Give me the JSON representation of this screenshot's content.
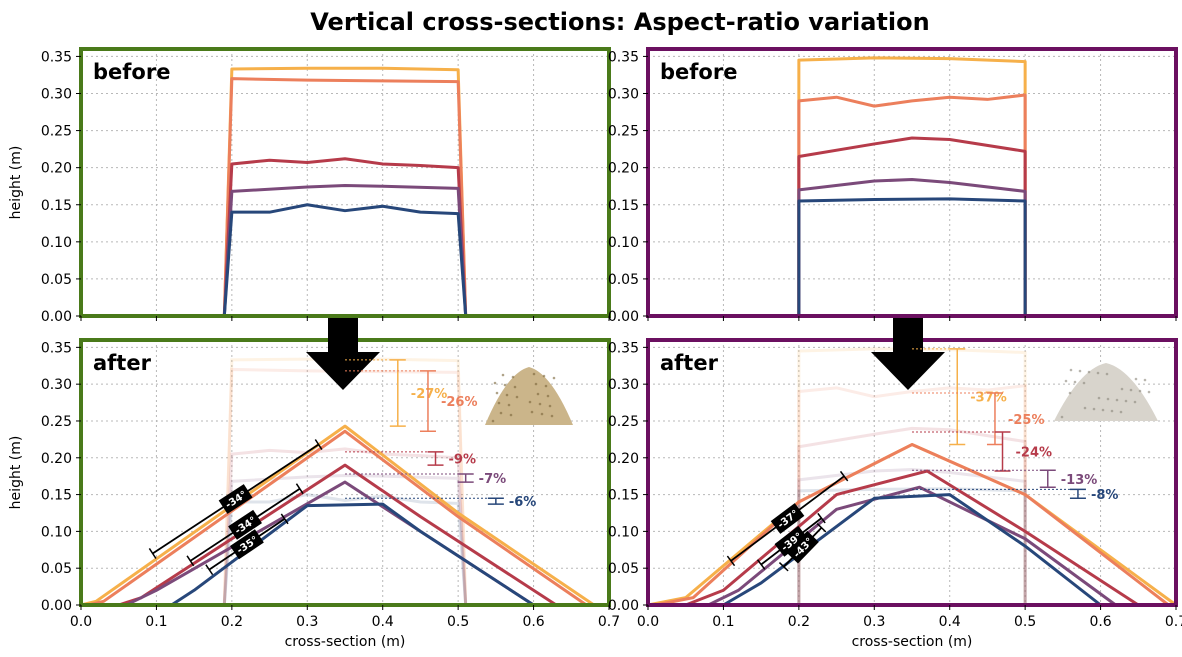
{
  "title": "Vertical cross-sections: Aspect-ratio variation",
  "axes": {
    "xlabel": "cross-section (m)",
    "ylabel": "height (m)",
    "xlim": [
      0.0,
      0.7
    ],
    "ylim": [
      0.0,
      0.36
    ],
    "xticks": [
      "0.0",
      "0.1",
      "0.2",
      "0.3",
      "0.4",
      "0.5",
      "0.6",
      "0.7"
    ],
    "yticks": [
      "0.00",
      "0.05",
      "0.10",
      "0.15",
      "0.20",
      "0.25",
      "0.30",
      "0.35"
    ],
    "grid": true
  },
  "colors": {
    "left_frame": "#4a7a1a",
    "right_frame": "#6b1060",
    "series": [
      "#f6b04a",
      "#ec7f5c",
      "#b63b4a",
      "#7b4a7a",
      "#27477a"
    ]
  },
  "icons": [
    "down-arrow-icon",
    "sand-pile-icon",
    "sand-pile-icon"
  ],
  "chart_data": [
    {
      "panel": "left-before",
      "type": "line",
      "label": "before",
      "series": [
        {
          "color": "#f6b04a",
          "x": [
            0.19,
            0.2,
            0.3,
            0.4,
            0.5,
            0.51
          ],
          "y": [
            0.0,
            0.333,
            0.334,
            0.334,
            0.332,
            0.0
          ]
        },
        {
          "color": "#ec7f5c",
          "x": [
            0.19,
            0.2,
            0.3,
            0.4,
            0.5,
            0.51
          ],
          "y": [
            0.0,
            0.32,
            0.318,
            0.317,
            0.316,
            0.0
          ]
        },
        {
          "color": "#b63b4a",
          "x": [
            0.19,
            0.2,
            0.25,
            0.3,
            0.35,
            0.4,
            0.45,
            0.5,
            0.51
          ],
          "y": [
            0.0,
            0.205,
            0.21,
            0.207,
            0.212,
            0.205,
            0.203,
            0.2,
            0.0
          ]
        },
        {
          "color": "#7b4a7a",
          "x": [
            0.19,
            0.2,
            0.3,
            0.35,
            0.4,
            0.5,
            0.51
          ],
          "y": [
            0.0,
            0.168,
            0.174,
            0.176,
            0.175,
            0.172,
            0.0
          ]
        },
        {
          "color": "#27477a",
          "x": [
            0.19,
            0.2,
            0.25,
            0.3,
            0.35,
            0.4,
            0.45,
            0.5,
            0.51
          ],
          "y": [
            0.0,
            0.14,
            0.14,
            0.15,
            0.142,
            0.148,
            0.14,
            0.138,
            0.0
          ]
        }
      ]
    },
    {
      "panel": "right-before",
      "type": "line",
      "label": "before",
      "series": [
        {
          "color": "#f6b04a",
          "x": [
            0.2,
            0.2,
            0.3,
            0.4,
            0.5,
            0.5
          ],
          "y": [
            0.0,
            0.345,
            0.348,
            0.347,
            0.343,
            0.0
          ]
        },
        {
          "color": "#ec7f5c",
          "x": [
            0.2,
            0.2,
            0.25,
            0.3,
            0.35,
            0.4,
            0.45,
            0.5,
            0.5
          ],
          "y": [
            0.0,
            0.29,
            0.295,
            0.283,
            0.29,
            0.295,
            0.292,
            0.298,
            0.0
          ]
        },
        {
          "color": "#b63b4a",
          "x": [
            0.2,
            0.2,
            0.3,
            0.35,
            0.4,
            0.5,
            0.5
          ],
          "y": [
            0.0,
            0.215,
            0.232,
            0.24,
            0.238,
            0.222,
            0.0
          ]
        },
        {
          "color": "#7b4a7a",
          "x": [
            0.2,
            0.2,
            0.3,
            0.35,
            0.4,
            0.5,
            0.5
          ],
          "y": [
            0.0,
            0.17,
            0.182,
            0.184,
            0.18,
            0.168,
            0.0
          ]
        },
        {
          "color": "#27477a",
          "x": [
            0.2,
            0.2,
            0.3,
            0.4,
            0.5,
            0.5
          ],
          "y": [
            0.0,
            0.155,
            0.157,
            0.158,
            0.155,
            0.0
          ]
        }
      ]
    },
    {
      "panel": "left-after",
      "type": "line",
      "label": "after",
      "series": [
        {
          "color": "#f6b04a",
          "x": [
            0.0,
            0.02,
            0.35,
            0.5,
            0.68
          ],
          "y": [
            0.0,
            0.005,
            0.243,
            0.125,
            0.0
          ]
        },
        {
          "color": "#ec7f5c",
          "x": [
            0.01,
            0.03,
            0.35,
            0.5,
            0.67
          ],
          "y": [
            0.0,
            0.005,
            0.236,
            0.12,
            0.0
          ]
        },
        {
          "color": "#b63b4a",
          "x": [
            0.05,
            0.08,
            0.35,
            0.45,
            0.63
          ],
          "y": [
            0.0,
            0.01,
            0.19,
            0.12,
            0.0
          ]
        },
        {
          "color": "#7b4a7a",
          "x": [
            0.06,
            0.1,
            0.35,
            0.42,
            0.6
          ],
          "y": [
            0.0,
            0.02,
            0.167,
            0.12,
            0.0
          ]
        },
        {
          "color": "#27477a",
          "x": [
            0.12,
            0.15,
            0.3,
            0.4,
            0.45,
            0.6
          ],
          "y": [
            0.0,
            0.02,
            0.135,
            0.137,
            0.1,
            0.0
          ]
        }
      ]
    },
    {
      "panel": "right-after",
      "type": "line",
      "label": "after",
      "series": [
        {
          "color": "#f6b04a",
          "x": [
            0.0,
            0.05,
            0.2,
            0.35,
            0.5,
            0.7
          ],
          "y": [
            0.0,
            0.01,
            0.14,
            0.218,
            0.15,
            0.0
          ]
        },
        {
          "color": "#ec7f5c",
          "x": [
            0.01,
            0.06,
            0.2,
            0.35,
            0.5,
            0.69
          ],
          "y": [
            0.0,
            0.01,
            0.14,
            0.218,
            0.15,
            0.0
          ]
        },
        {
          "color": "#b63b4a",
          "x": [
            0.05,
            0.1,
            0.25,
            0.37,
            0.5,
            0.65
          ],
          "y": [
            0.0,
            0.02,
            0.15,
            0.182,
            0.1,
            0.0
          ]
        },
        {
          "color": "#7b4a7a",
          "x": [
            0.08,
            0.12,
            0.25,
            0.36,
            0.5,
            0.62
          ],
          "y": [
            0.0,
            0.02,
            0.13,
            0.16,
            0.09,
            0.0
          ]
        },
        {
          "color": "#27477a",
          "x": [
            0.1,
            0.15,
            0.3,
            0.4,
            0.5,
            0.6
          ],
          "y": [
            0.0,
            0.03,
            0.145,
            0.15,
            0.08,
            0.0
          ]
        }
      ]
    }
  ],
  "left_changes": [
    "-27%",
    "-26%",
    "-9%",
    "-7%",
    "-6%"
  ],
  "left_angles": [
    "-34°",
    "-34°",
    "-35°"
  ],
  "right_changes": [
    "-37%",
    "-25%",
    "-24%",
    "-13%",
    "-8%"
  ],
  "right_angles": [
    "-37°",
    "-39°",
    "-43°"
  ]
}
